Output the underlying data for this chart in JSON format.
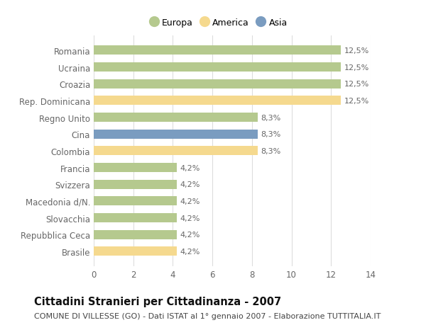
{
  "categories": [
    "Romania",
    "Ucraina",
    "Croazia",
    "Rep. Dominicana",
    "Regno Unito",
    "Cina",
    "Colombia",
    "Francia",
    "Svizzera",
    "Macedonia d/N.",
    "Slovacchia",
    "Repubblica Ceca",
    "Brasile"
  ],
  "values": [
    12.5,
    12.5,
    12.5,
    12.5,
    8.3,
    8.3,
    8.3,
    4.2,
    4.2,
    4.2,
    4.2,
    4.2,
    4.2
  ],
  "colors": [
    "#b5c98e",
    "#b5c98e",
    "#b5c98e",
    "#f5d98e",
    "#b5c98e",
    "#7a9cc0",
    "#f5d98e",
    "#b5c98e",
    "#b5c98e",
    "#b5c98e",
    "#b5c98e",
    "#b5c98e",
    "#f5d98e"
  ],
  "labels": [
    "12,5%",
    "12,5%",
    "12,5%",
    "12,5%",
    "8,3%",
    "8,3%",
    "8,3%",
    "4,2%",
    "4,2%",
    "4,2%",
    "4,2%",
    "4,2%",
    "4,2%"
  ],
  "legend_labels": [
    "Europa",
    "America",
    "Asia"
  ],
  "legend_colors": [
    "#b5c98e",
    "#f5d98e",
    "#7a9cc0"
  ],
  "title": "Cittadini Stranieri per Cittadinanza - 2007",
  "subtitle": "COMUNE DI VILLESSE (GO) - Dati ISTAT al 1° gennaio 2007 - Elaborazione TUTTITALIA.IT",
  "xlim": [
    0,
    14
  ],
  "xticks": [
    0,
    2,
    4,
    6,
    8,
    10,
    12,
    14
  ],
  "background_color": "#ffffff",
  "grid_color": "#dddddd",
  "bar_height": 0.55,
  "label_fontsize": 8.0,
  "title_fontsize": 10.5,
  "subtitle_fontsize": 8.0,
  "tick_fontsize": 8.5,
  "ytick_fontsize": 8.5
}
